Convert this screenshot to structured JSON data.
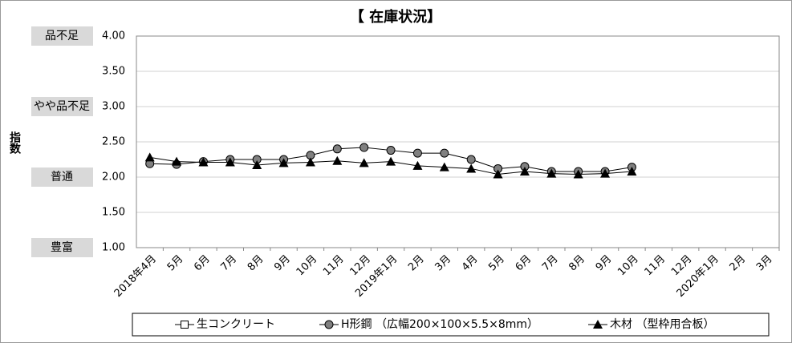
{
  "chart_data": {
    "type": "line",
    "title": "【 在庫状況】",
    "ylabel": "指数",
    "categories": [
      "2018年4月",
      "5月",
      "6月",
      "7月",
      "8月",
      "9月",
      "10月",
      "11月",
      "12月",
      "2019年1月",
      "2月",
      "3月",
      "4月",
      "5月",
      "6月",
      "7月",
      "8月",
      "9月",
      "10月",
      "11月",
      "12月",
      "2020年1月",
      "2月",
      "3月"
    ],
    "series": [
      {
        "name": "生コンクリート",
        "color": "#000000",
        "marker": "square",
        "values": [
          null,
          null,
          null,
          null,
          null,
          null,
          null,
          null,
          null,
          null,
          null,
          null,
          null,
          null,
          null,
          null,
          null,
          null,
          null,
          null,
          null,
          null,
          null,
          null
        ]
      },
      {
        "name": "H形鋼 （広幅200×100×5.5×8mm）",
        "color": "#808080",
        "marker": "circle",
        "values": [
          2.19,
          2.18,
          2.22,
          2.25,
          2.25,
          2.25,
          2.31,
          2.4,
          2.42,
          2.38,
          2.34,
          2.34,
          2.25,
          2.12,
          2.15,
          2.08,
          2.08,
          2.08,
          2.14,
          null,
          null,
          null,
          null,
          null
        ]
      },
      {
        "name": "木材 （型枠用合板）",
        "color": "#000000",
        "marker": "triangle",
        "values": [
          2.28,
          2.22,
          2.21,
          2.21,
          2.17,
          2.2,
          2.21,
          2.23,
          2.2,
          2.22,
          2.16,
          2.14,
          2.12,
          2.04,
          2.08,
          2.05,
          2.04,
          2.05,
          2.08,
          null,
          null,
          null,
          null,
          null
        ]
      }
    ],
    "ylim": [
      1,
      4
    ],
    "yticks": [
      {
        "value": 1,
        "label": "1.00"
      },
      {
        "value": 1.5,
        "label": "1.50"
      },
      {
        "value": 2,
        "label": "2.00"
      },
      {
        "value": 2.5,
        "label": "2.50"
      },
      {
        "value": 3,
        "label": "3.00"
      },
      {
        "value": 3.5,
        "label": "3.50"
      },
      {
        "value": 4,
        "label": "4.00"
      }
    ],
    "level_labels": [
      {
        "value": 4,
        "label": "品不足"
      },
      {
        "value": 3,
        "label": "やや品不足"
      },
      {
        "value": 2,
        "label": "普通"
      },
      {
        "value": 1,
        "label": "豊富"
      }
    ],
    "grid": true
  }
}
